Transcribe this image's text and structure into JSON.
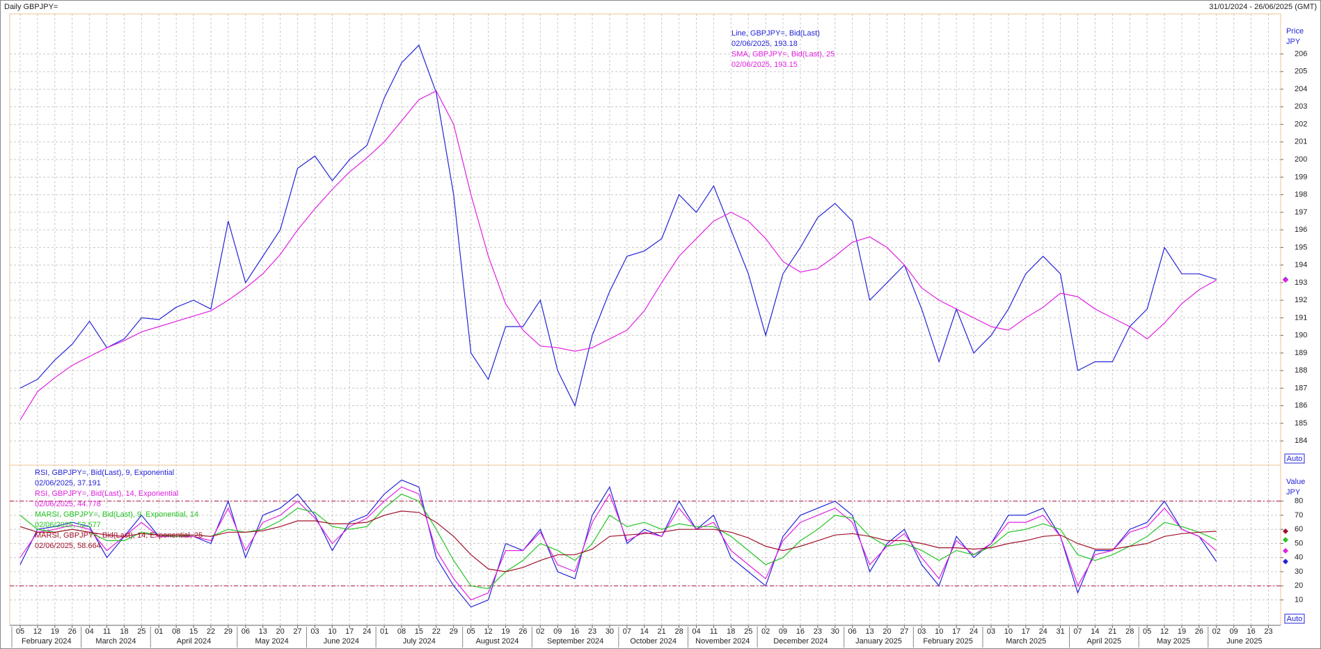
{
  "header": {
    "title": "Daily GBPJPY=",
    "range": "31/01/2024 - 26/06/2025 (GMT)"
  },
  "chart_data": [
    {
      "type": "line",
      "axis_title": "Price",
      "axis_unit": "JPY",
      "button": "Auto",
      "ylim": [
        182.7,
        208.2
      ],
      "yticks": [
        184,
        185,
        186,
        187,
        188,
        189,
        190,
        191,
        192,
        193,
        194,
        195,
        196,
        197,
        198,
        199,
        200,
        201,
        202,
        203,
        204,
        205,
        206
      ],
      "grid": true,
      "series": [
        {
          "name": "Line, GBPJPY=, Bid(Last)",
          "last_label": "02/06/2025, 193.18",
          "color": "#2323d6",
          "values": [
            187.0,
            187.5,
            188.6,
            189.5,
            190.8,
            189.3,
            189.8,
            191.0,
            190.9,
            191.6,
            192.0,
            191.5,
            196.5,
            193.0,
            194.5,
            196.0,
            199.5,
            200.2,
            198.8,
            200.0,
            200.8,
            203.5,
            205.5,
            206.5,
            203.8,
            198.0,
            189.0,
            187.5,
            190.5,
            190.5,
            192.0,
            188.0,
            186.0,
            190.0,
            192.5,
            194.5,
            194.8,
            195.5,
            198.0,
            197.0,
            198.5,
            196.0,
            193.5,
            190.0,
            193.5,
            195.0,
            196.7,
            197.5,
            196.5,
            192.0,
            193.0,
            194.0,
            191.5,
            188.5,
            191.5,
            189.0,
            190.0,
            191.5,
            193.5,
            194.5,
            193.5,
            188.0,
            188.5,
            188.5,
            190.5,
            191.5,
            195.0,
            193.5,
            193.5,
            193.18,
            null,
            null,
            null
          ]
        },
        {
          "name": "SMA, GBPJPY=, Bid(Last),  25",
          "last_label": "02/06/2025, 193.15",
          "color": "#e020e0",
          "values": [
            185.2,
            186.8,
            187.6,
            188.3,
            188.8,
            189.3,
            189.7,
            190.2,
            190.5,
            190.8,
            191.1,
            191.4,
            192.0,
            192.7,
            193.5,
            194.6,
            196.0,
            197.2,
            198.3,
            199.3,
            200.1,
            201.0,
            202.2,
            203.4,
            203.9,
            202.0,
            198.0,
            194.5,
            191.8,
            190.3,
            189.4,
            189.3,
            189.1,
            189.3,
            189.8,
            190.3,
            191.4,
            193.0,
            194.5,
            195.5,
            196.5,
            197.0,
            196.5,
            195.5,
            194.2,
            193.6,
            193.8,
            194.5,
            195.3,
            195.6,
            195.0,
            194.0,
            192.7,
            192.0,
            191.5,
            191.0,
            190.5,
            190.3,
            191.0,
            191.6,
            192.4,
            192.2,
            191.5,
            191.0,
            190.5,
            189.8,
            190.7,
            191.8,
            192.6,
            193.15,
            null,
            null,
            null
          ]
        }
      ]
    },
    {
      "type": "line",
      "axis_title": "Value",
      "axis_unit": "JPY",
      "button": "Auto",
      "ylim": [
        -7,
        105
      ],
      "yticks": [
        10,
        20,
        30,
        40,
        50,
        60,
        70,
        80
      ],
      "levels": [
        20,
        80
      ],
      "grid": true,
      "categories": [
        "05",
        "12",
        "19",
        "26",
        "04",
        "11",
        "18",
        "25",
        "01",
        "08",
        "15",
        "22",
        "29",
        "06",
        "13",
        "20",
        "27",
        "03",
        "10",
        "17",
        "24",
        "01",
        "08",
        "15",
        "22",
        "29",
        "05",
        "12",
        "19",
        "26",
        "02",
        "09",
        "16",
        "23",
        "30",
        "07",
        "14",
        "21",
        "28",
        "04",
        "11",
        "18",
        "25",
        "02",
        "09",
        "16",
        "23",
        "30",
        "06",
        "13",
        "20",
        "27",
        "03",
        "10",
        "17",
        "24",
        "03",
        "10",
        "17",
        "24",
        "31",
        "07",
        "14",
        "21",
        "28",
        "05",
        "12",
        "19",
        "26",
        "02",
        "09",
        "16",
        "23"
      ],
      "months": [
        "February 2024",
        "March 2024",
        "April 2024",
        "May 2024",
        "June 2024",
        "July 2024",
        "August 2024",
        "September 2024",
        "October 2024",
        "November 2024",
        "December 2024",
        "January 2025",
        "February 2025",
        "March 2025",
        "April 2025",
        "May 2025",
        "June 2025"
      ],
      "series": [
        {
          "name": "RSI, GBPJPY=, Bid(Last),  9, Exponential",
          "last_label": "02/06/2025, 37.191",
          "color": "#2323d6",
          "values": [
            35,
            60,
            62,
            65,
            62,
            40,
            55,
            70,
            55,
            55,
            55,
            50,
            80,
            40,
            70,
            75,
            85,
            70,
            45,
            65,
            70,
            85,
            95,
            90,
            40,
            20,
            5,
            10,
            50,
            45,
            60,
            30,
            25,
            70,
            90,
            50,
            60,
            55,
            80,
            60,
            70,
            40,
            30,
            20,
            55,
            70,
            75,
            80,
            70,
            30,
            50,
            60,
            35,
            20,
            55,
            40,
            50,
            70,
            70,
            75,
            55,
            15,
            45,
            45,
            60,
            65,
            80,
            60,
            55,
            37.191,
            null,
            null,
            null
          ]
        },
        {
          "name": "RSI, GBPJPY=, Bid(Last),  14, Exponential",
          "last_label": "02/06/2025, 44.778",
          "color": "#e020e0",
          "values": [
            40,
            58,
            60,
            63,
            60,
            45,
            55,
            65,
            55,
            55,
            55,
            52,
            75,
            45,
            65,
            70,
            80,
            68,
            50,
            62,
            68,
            80,
            90,
            85,
            45,
            25,
            10,
            15,
            45,
            45,
            58,
            35,
            30,
            65,
            85,
            52,
            58,
            55,
            75,
            60,
            65,
            45,
            35,
            25,
            52,
            65,
            70,
            75,
            65,
            35,
            48,
            57,
            40,
            25,
            52,
            42,
            50,
            65,
            65,
            70,
            55,
            20,
            42,
            45,
            58,
            62,
            75,
            60,
            55,
            44.778,
            null,
            null,
            null
          ]
        },
        {
          "name": "MARSI, GBPJPY=, Bid(Last),  9, Exponential, 14",
          "last_label": "02/06/2025, 52.577",
          "color": "#22c422",
          "values": [
            70,
            60,
            58,
            60,
            58,
            52,
            52,
            58,
            56,
            55,
            56,
            55,
            60,
            58,
            60,
            66,
            75,
            72,
            62,
            60,
            62,
            75,
            85,
            80,
            60,
            38,
            20,
            18,
            30,
            38,
            50,
            45,
            38,
            50,
            70,
            62,
            65,
            60,
            64,
            62,
            62,
            55,
            45,
            35,
            40,
            52,
            60,
            70,
            68,
            55,
            48,
            50,
            45,
            38,
            45,
            42,
            48,
            58,
            60,
            64,
            60,
            42,
            38,
            42,
            48,
            55,
            65,
            62,
            58,
            52.577,
            null,
            null,
            null
          ]
        },
        {
          "name": "MARSI, GBPJPY=, Bid(Last),  14, Exponential, 25",
          "last_label": "02/06/2025, 58.664",
          "color": "#a0102a",
          "values": [
            62,
            58,
            58,
            60,
            58,
            56,
            55,
            57,
            56,
            56,
            56,
            55,
            58,
            58,
            59,
            62,
            66,
            66,
            64,
            64,
            65,
            70,
            73,
            72,
            65,
            55,
            42,
            32,
            30,
            33,
            38,
            42,
            42,
            46,
            55,
            56,
            57,
            58,
            60,
            60,
            60,
            58,
            54,
            48,
            45,
            48,
            52,
            56,
            57,
            55,
            52,
            52,
            50,
            47,
            47,
            46,
            47,
            50,
            52,
            55,
            56,
            50,
            46,
            46,
            48,
            50,
            55,
            57,
            58,
            58.664,
            null,
            null,
            null
          ]
        }
      ]
    }
  ]
}
